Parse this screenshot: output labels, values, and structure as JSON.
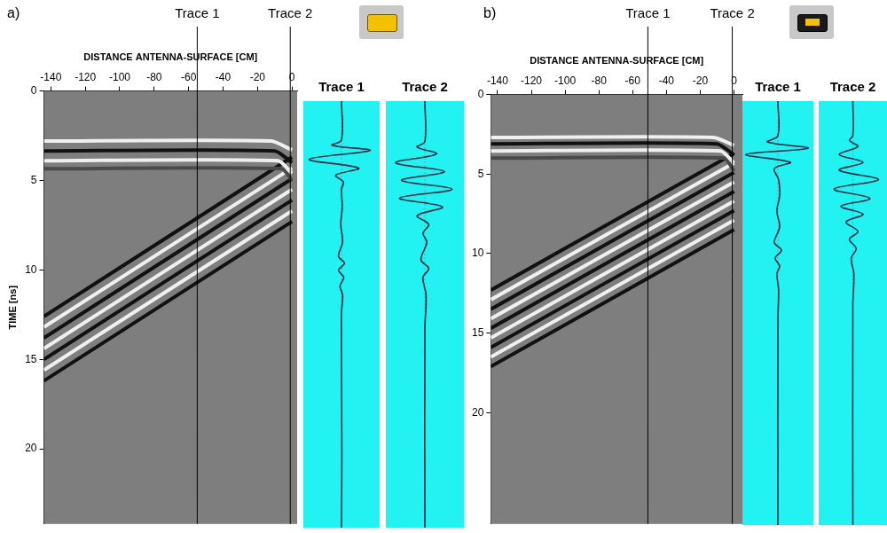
{
  "chart_data": [
    {
      "type": "line",
      "title": "a)",
      "xlabel": "DISTANCE ANTENNA-SURFACE [CM]",
      "ylabel": "TIME [ns]",
      "xlim": [
        -144,
        3
      ],
      "xticks": [
        -140,
        -120,
        -100,
        -80,
        -60,
        -40,
        -20,
        0
      ],
      "ylim": [
        0,
        24.2
      ],
      "yticks": [
        0,
        5,
        10,
        15,
        20
      ],
      "grid": false,
      "annotations": [
        {
          "x": -55,
          "label": "Trace 1"
        },
        {
          "x": -1,
          "label": "Trace 2"
        }
      ],
      "series": [
        {
          "color": "#f0f0f0",
          "x": [
            -144,
            -12,
            0
          ],
          "values": [
            2.8,
            2.8,
            3.3
          ]
        },
        {
          "color": "#111111",
          "x": [
            -144,
            -10,
            0
          ],
          "values": [
            3.35,
            3.35,
            4.0
          ]
        },
        {
          "color": "#f0f0f0",
          "x": [
            -144,
            -8,
            0
          ],
          "values": [
            3.9,
            3.9,
            4.6
          ]
        },
        {
          "color": "#4a4a4a",
          "x": [
            -144,
            -6,
            0
          ],
          "values": [
            4.35,
            4.35,
            5.0
          ]
        },
        {
          "color": "#111111",
          "x": [
            -144,
            0
          ],
          "values": [
            12.6,
            3.7
          ]
        },
        {
          "color": "#f0f0f0",
          "x": [
            -144,
            0
          ],
          "values": [
            13.2,
            4.3
          ]
        },
        {
          "color": "#111111",
          "x": [
            -144,
            0
          ],
          "values": [
            13.8,
            4.9
          ]
        },
        {
          "color": "#f0f0f0",
          "x": [
            -144,
            0
          ],
          "values": [
            14.4,
            5.5
          ]
        },
        {
          "color": "#111111",
          "x": [
            -144,
            0
          ],
          "values": [
            15.0,
            6.1
          ]
        },
        {
          "color": "#f0f0f0",
          "x": [
            -144,
            0
          ],
          "values": [
            15.6,
            6.7
          ]
        },
        {
          "color": "#111111",
          "x": [
            -144,
            0
          ],
          "values": [
            16.2,
            7.3
          ]
        }
      ]
    },
    {
      "type": "wiggle",
      "title": "Trace 1",
      "xlim": [
        -1,
        1
      ],
      "ylim": [
        0,
        24.2
      ],
      "tick_labels": false,
      "color": "#1c2f45",
      "time": [
        0,
        2.2,
        2.5,
        2.8,
        3.3,
        3.8,
        4.2,
        4.6,
        5,
        6,
        7,
        8,
        8.8,
        9.2,
        9.6,
        10,
        10.5,
        11,
        12,
        15,
        20,
        24.2
      ],
      "amplitude": [
        0,
        0,
        -0.25,
        0.75,
        -0.85,
        0.45,
        -0.15,
        0.05,
        0,
        0.02,
        -0.02,
        0.03,
        -0.08,
        0.08,
        -0.08,
        0.06,
        -0.04,
        0.03,
        0,
        0,
        0.01,
        0
      ]
    },
    {
      "type": "wiggle",
      "title": "Trace 2",
      "xlim": [
        -1,
        1
      ],
      "ylim": [
        0,
        24.2
      ],
      "tick_labels": false,
      "color": "#1c2f45",
      "time": [
        0,
        2.3,
        2.6,
        3.0,
        3.5,
        4.0,
        4.5,
        5.0,
        5.5,
        6.0,
        6.5,
        7,
        7.5,
        8,
        9,
        9.5,
        10,
        11,
        13,
        24.2
      ],
      "amplitude": [
        0,
        0,
        -0.2,
        0.3,
        -0.75,
        0.5,
        -0.6,
        0.7,
        -0.65,
        0.45,
        -0.2,
        0.1,
        -0.05,
        0.05,
        -0.1,
        0.1,
        -0.05,
        0.03,
        0,
        0
      ]
    },
    {
      "type": "line",
      "title": "b)",
      "xlabel": "DISTANCE ANTENNA-SURFACE [CM]",
      "xlim": [
        -144,
        5
      ],
      "xticks": [
        -140,
        -120,
        -100,
        -80,
        -60,
        -40,
        -20,
        0
      ],
      "ylim": [
        0,
        27
      ],
      "yticks": [
        0,
        5,
        10,
        15,
        20
      ],
      "grid": false,
      "annotations": [
        {
          "x": -51,
          "label": "Trace 1"
        },
        {
          "x": -1,
          "label": "Trace 2"
        }
      ],
      "series": [
        {
          "color": "#f0f0f0",
          "x": [
            -144,
            -12,
            0
          ],
          "values": [
            2.7,
            2.7,
            3.2
          ]
        },
        {
          "color": "#111111",
          "x": [
            -144,
            -10,
            0
          ],
          "values": [
            3.1,
            3.1,
            3.8
          ]
        },
        {
          "color": "#f0f0f0",
          "x": [
            -144,
            -8,
            0
          ],
          "values": [
            3.55,
            3.55,
            4.3
          ]
        },
        {
          "color": "#4a4a4a",
          "x": [
            -144,
            -6,
            0
          ],
          "values": [
            4.0,
            4.0,
            4.8
          ]
        },
        {
          "color": "#111111",
          "x": [
            -144,
            0
          ],
          "values": [
            12.3,
            3.7
          ]
        },
        {
          "color": "#f0f0f0",
          "x": [
            -144,
            0
          ],
          "values": [
            12.9,
            4.3
          ]
        },
        {
          "color": "#111111",
          "x": [
            -144,
            0
          ],
          "values": [
            13.5,
            4.9
          ]
        },
        {
          "color": "#f0f0f0",
          "x": [
            -144,
            0
          ],
          "values": [
            14.1,
            5.5
          ]
        },
        {
          "color": "#111111",
          "x": [
            -144,
            0
          ],
          "values": [
            14.7,
            6.1
          ]
        },
        {
          "color": "#f0f0f0",
          "x": [
            -144,
            0
          ],
          "values": [
            15.3,
            6.7
          ]
        },
        {
          "color": "#111111",
          "x": [
            -144,
            0
          ],
          "values": [
            15.9,
            7.3
          ]
        },
        {
          "color": "#f0f0f0",
          "x": [
            -144,
            0
          ],
          "values": [
            16.5,
            7.9
          ]
        },
        {
          "color": "#111111",
          "x": [
            -144,
            0
          ],
          "values": [
            17.1,
            8.5
          ]
        }
      ]
    },
    {
      "type": "wiggle",
      "title": "Trace 1",
      "xlim": [
        -1,
        1
      ],
      "ylim": [
        0,
        27
      ],
      "tick_labels": false,
      "color": "#1c2f45",
      "time": [
        0,
        2.2,
        2.6,
        3.0,
        3.4,
        3.9,
        4.3,
        5,
        6,
        7,
        8,
        9,
        9.5,
        10,
        10.5,
        11,
        12,
        14,
        27
      ],
      "amplitude": [
        0,
        0,
        -0.3,
        0.85,
        -0.9,
        0.35,
        -0.1,
        0.02,
        0.05,
        -0.03,
        0.05,
        -0.1,
        0.1,
        -0.08,
        0.05,
        -0.03,
        0.02,
        0,
        0
      ]
    },
    {
      "type": "wiggle",
      "title": "Trace 2",
      "xlim": [
        -1,
        1
      ],
      "ylim": [
        0,
        27
      ],
      "tick_labels": false,
      "color": "#1c2f45",
      "time": [
        0,
        2.2,
        2.5,
        2.9,
        3.4,
        3.9,
        4.4,
        5.0,
        5.6,
        6.2,
        6.7,
        7.2,
        7.7,
        8.3,
        8.8,
        9.4,
        10,
        11,
        13,
        27
      ],
      "amplitude": [
        0,
        0,
        -0.1,
        0.15,
        -0.4,
        0.3,
        -0.4,
        0.75,
        -0.55,
        0.5,
        -0.35,
        0.3,
        -0.2,
        0.15,
        -0.1,
        0.1,
        -0.05,
        0.03,
        0,
        0
      ]
    }
  ]
}
